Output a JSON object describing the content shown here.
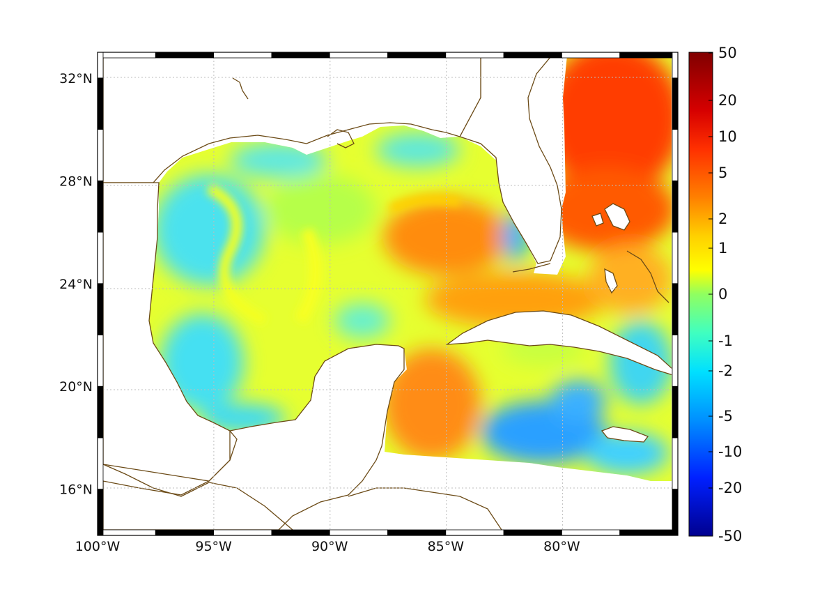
{
  "map": {
    "lon_range": [
      -100,
      -75
    ],
    "lat_range": [
      14.2,
      33
    ],
    "lon_ticks": [
      {
        "value": -100,
        "label": "100°W"
      },
      {
        "value": -95,
        "label": "95°W"
      },
      {
        "value": -90,
        "label": "90°W"
      },
      {
        "value": -85,
        "label": "85°W"
      },
      {
        "value": -80,
        "label": "80°W"
      }
    ],
    "lat_ticks": [
      {
        "value": 32,
        "label": "32°N"
      },
      {
        "value": 28,
        "label": "28°N"
      },
      {
        "value": 24,
        "label": "24°N"
      },
      {
        "value": 20,
        "label": "20°N"
      },
      {
        "value": 16,
        "label": "16°N"
      }
    ],
    "grid": true,
    "frame_style": "alternating black-white border",
    "coastline_color": "#6b4a16",
    "colormap": "jet",
    "colorbar": {
      "orientation": "vertical",
      "placement": "right",
      "labels": [
        "50",
        "20",
        "10",
        "5",
        "2",
        "1",
        "0",
        "-1",
        "-2",
        "-5",
        "-10",
        "-20",
        "-50"
      ]
    },
    "field_regions": [
      {
        "name": "western-gulf",
        "level": "-1 to -2",
        "color": "#41e3f0"
      },
      {
        "name": "central-gulf",
        "level": "0 to 1",
        "color": "#b8ff44"
      },
      {
        "name": "loop-current",
        "level": "5",
        "color": "#ff8a12"
      },
      {
        "name": "atlantic-gulf-stream",
        "level": "10 to 20",
        "color": "#ff3c00"
      },
      {
        "name": "caribbean-south",
        "level": "-2 to -5",
        "color": "#2aa6ff"
      }
    ]
  }
}
